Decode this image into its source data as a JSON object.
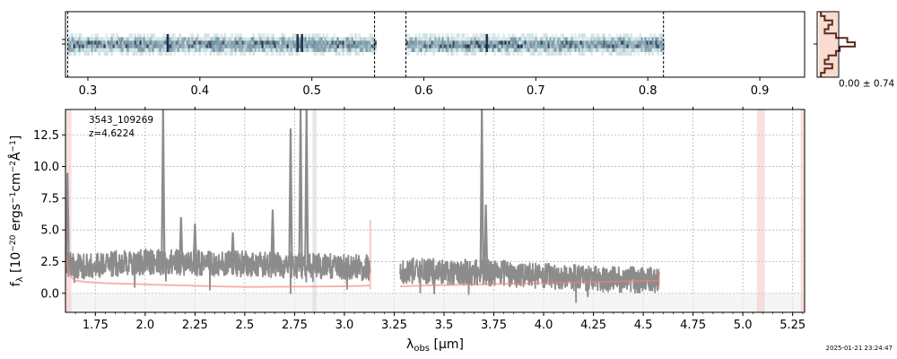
{
  "chart_data": [
    {
      "type": "heatmap",
      "panel": "2D spectrum",
      "xlim": [
        0.28,
        0.94
      ],
      "xticks": [
        "0.3",
        "0.4",
        "0.5",
        "0.6",
        "0.7",
        "0.8",
        "0.9"
      ],
      "xtick_values": [
        0.3,
        0.4,
        0.5,
        0.6,
        0.7,
        0.8,
        0.9
      ],
      "coverage": [
        [
          0.282,
          0.556
        ],
        [
          0.584,
          0.814
        ]
      ],
      "gaps": [
        [
          0.556,
          0.583
        ]
      ],
      "colormap": [
        "#ffffff",
        "#c8dede",
        "#6f93a4",
        "#1d3149"
      ]
    },
    {
      "type": "area",
      "panel": "trace profile",
      "label": "0.00 ± 0.74",
      "fill_color": "#f7d2c4",
      "line_color": "#5b2b21"
    },
    {
      "type": "line",
      "panel": "1D spectrum",
      "title": "",
      "object_id": "3543_109269",
      "redshift_label": "z=4.6224",
      "xlabel": "λobs [μm]",
      "ylabel": "fλ [10−20 ergs−1cm−2Å−1]",
      "xlim": [
        1.6,
        5.31
      ],
      "ylim": [
        -1.5,
        14.5
      ],
      "xticks": [
        "1.75",
        "2.0",
        "2.25",
        "2.5",
        "2.75",
        "3.0",
        "3.25",
        "3.5",
        "3.75",
        "4.0",
        "4.25",
        "4.5",
        "4.75",
        "5.0",
        "5.25"
      ],
      "xtick_values": [
        1.75,
        2.0,
        2.25,
        2.5,
        2.75,
        3.0,
        3.25,
        3.5,
        3.75,
        4.0,
        4.25,
        4.5,
        4.75,
        5.0,
        5.25
      ],
      "yticks": [
        "0.0",
        "2.5",
        "5.0",
        "7.5",
        "10.0",
        "12.5"
      ],
      "ytick_values": [
        0.0,
        2.5,
        5.0,
        7.5,
        10.0,
        12.5
      ],
      "grid": true,
      "colors": {
        "data": "#8c8c8c",
        "model": "#f08080",
        "shade": "#f2c6c6",
        "mask": "#d8dde4"
      },
      "series": [
        {
          "role": "data",
          "segments": [
            [
              1.6,
              3.13
            ],
            [
              3.28,
              4.58
            ]
          ],
          "baseline": [
            [
              1.6,
              2.4
            ],
            [
              1.65,
              2.1
            ],
            [
              2.0,
              2.5
            ],
            [
              2.5,
              2.3
            ],
            [
              3.0,
              2.1
            ],
            [
              3.13,
              2.0
            ],
            [
              3.28,
              1.8
            ],
            [
              3.75,
              1.6
            ],
            [
              4.2,
              1.2
            ],
            [
              4.58,
              1.0
            ]
          ],
          "noise": 0.6,
          "emission_lines": [
            {
              "x": 1.61,
              "y": 9.5
            },
            {
              "x": 2.09,
              "y": 14.5
            },
            {
              "x": 2.73,
              "y": 13.0
            },
            {
              "x": 2.78,
              "y": 14.5
            },
            {
              "x": 2.81,
              "y": 14.5
            },
            {
              "x": 3.69,
              "y": 14.5
            },
            {
              "x": 3.71,
              "y": 7.0
            },
            {
              "x": 2.18,
              "y": 6.0
            },
            {
              "x": 2.25,
              "y": 5.5
            },
            {
              "x": 2.44,
              "y": 4.8
            },
            {
              "x": 2.64,
              "y": 6.6
            }
          ]
        },
        {
          "role": "model",
          "segments": [
            {
              "x": [
                1.6,
                1.62,
                1.65,
                1.7,
                1.8,
                2.0,
                2.5,
                3.0,
                3.13
              ],
              "y": [
                3.0,
                1.4,
                1.0,
                0.9,
                0.8,
                0.7,
                0.5,
                0.55,
                0.6
              ]
            },
            {
              "x": [
                3.28,
                3.5,
                4.0,
                4.58
              ],
              "y": [
                0.55,
                0.65,
                0.8,
                1.0
              ]
            }
          ]
        }
      ],
      "shaded_bands": [
        [
          1.6,
          1.63
        ],
        [
          5.07,
          5.11
        ],
        [
          5.29,
          5.31
        ]
      ],
      "mask_bands": [
        [
          2.84,
          2.86
        ]
      ],
      "model_edges": [
        {
          "x": 1.6,
          "y": 7.5
        },
        {
          "x": 3.13,
          "y": 5.8
        },
        {
          "x": 4.58,
          "y": 2.0
        }
      ]
    }
  ],
  "footer": {
    "timestamp": "2025-01-21 23:24:47"
  }
}
